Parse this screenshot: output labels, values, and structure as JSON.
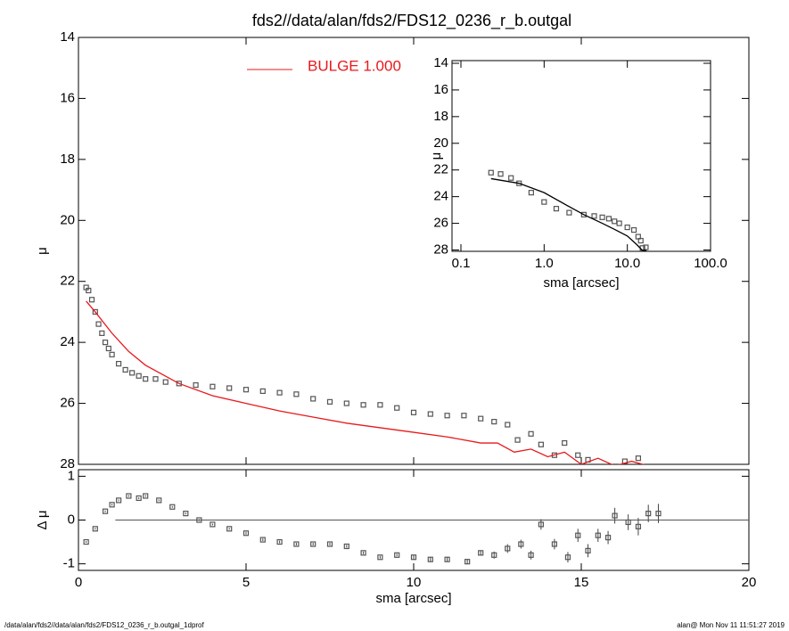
{
  "footer": {
    "left": "/data/alan/fds2//data/alan/fds2/FDS12_0236_r_b.outgal_1dprof",
    "right": "alan@  Mon Nov 11 11:51:27 2019"
  },
  "chart_data": [
    {
      "type": "scatter",
      "title": "fds2//data/alan/fds2/FDS12_0236_r_b.outgal",
      "y_label": "μ",
      "xlim": [
        0,
        20
      ],
      "xticks": [
        0,
        5,
        10,
        15,
        20
      ],
      "ylim": [
        28,
        14
      ],
      "yticks": [
        14,
        16,
        18,
        20,
        22,
        24,
        26,
        28
      ],
      "series": [
        {
          "marker": "square",
          "color": "#555555",
          "x": [
            0.23,
            0.3,
            0.4,
            0.5,
            0.6,
            0.7,
            0.8,
            0.9,
            1.0,
            1.2,
            1.4,
            1.6,
            1.8,
            2.0,
            2.3,
            2.6,
            3.0,
            3.5,
            4.0,
            4.5,
            5.0,
            5.5,
            6.0,
            6.5,
            7.0,
            7.5,
            8.0,
            8.5,
            9.0,
            9.5,
            10.0,
            10.5,
            11.0,
            11.5,
            12.0,
            12.4,
            12.8,
            13.1,
            13.5,
            13.8,
            14.2,
            14.5,
            14.9,
            15.2,
            16.3,
            16.7
          ],
          "values": [
            22.2,
            22.3,
            22.6,
            23.0,
            23.4,
            23.7,
            24.0,
            24.2,
            24.4,
            24.7,
            24.9,
            25.0,
            25.1,
            25.2,
            25.2,
            25.3,
            25.35,
            25.4,
            25.45,
            25.5,
            25.55,
            25.6,
            25.65,
            25.7,
            25.85,
            25.95,
            26.0,
            26.05,
            26.05,
            26.15,
            26.3,
            26.35,
            26.4,
            26.4,
            26.5,
            26.6,
            26.7,
            27.2,
            27.0,
            27.35,
            27.7,
            27.3,
            27.7,
            27.85,
            27.9,
            27.8
          ]
        },
        {
          "name": "BULGE  1.000",
          "style": "line",
          "color": "#e8191c",
          "x": [
            0.23,
            0.5,
            1,
            1.5,
            2,
            3,
            4,
            5,
            6,
            7,
            8,
            9,
            10,
            11,
            12,
            12.5,
            13,
            13.5,
            14,
            14.5,
            15,
            15.5,
            16,
            16.5,
            17
          ],
          "values": [
            22.65,
            23.0,
            23.7,
            24.3,
            24.75,
            25.35,
            25.75,
            26.0,
            26.25,
            26.45,
            26.65,
            26.8,
            26.95,
            27.1,
            27.3,
            27.3,
            27.6,
            27.5,
            27.75,
            27.6,
            28.0,
            27.8,
            28.05,
            27.9,
            28.05
          ]
        }
      ]
    },
    {
      "type": "errorbar",
      "y_label": "Δ μ",
      "x_label": "sma [arcsec]",
      "xlim": [
        0,
        20
      ],
      "xticks": [
        0,
        5,
        10,
        15,
        20
      ],
      "ylim": [
        -1.15,
        1.15
      ],
      "yticks": [
        1,
        0,
        -1
      ],
      "zero_line": true,
      "series": [
        {
          "marker": "square",
          "color": "#555555",
          "x": [
            0.23,
            0.5,
            0.8,
            1.0,
            1.2,
            1.5,
            1.8,
            2.0,
            2.4,
            2.8,
            3.2,
            3.6,
            4.0,
            4.5,
            5.0,
            5.5,
            6.0,
            6.5,
            7.0,
            7.5,
            8.0,
            8.5,
            9.0,
            9.5,
            10.0,
            10.5,
            11.0,
            11.6,
            12.0,
            12.4,
            12.8,
            13.2,
            13.5,
            13.8,
            14.2,
            14.6,
            14.9,
            15.2,
            15.5,
            15.8,
            16.0,
            16.4,
            16.7,
            17.0,
            17.3
          ],
          "values": [
            -0.5,
            -0.2,
            0.2,
            0.35,
            0.45,
            0.55,
            0.5,
            0.55,
            0.45,
            0.3,
            0.15,
            0.0,
            -0.1,
            -0.2,
            -0.3,
            -0.45,
            -0.5,
            -0.55,
            -0.55,
            -0.55,
            -0.6,
            -0.75,
            -0.85,
            -0.8,
            -0.85,
            -0.9,
            -0.9,
            -0.95,
            -0.75,
            -0.8,
            -0.65,
            -0.55,
            -0.8,
            -0.1,
            -0.55,
            -0.85,
            -0.35,
            -0.7,
            -0.35,
            -0.4,
            0.1,
            -0.05,
            -0.15,
            0.15,
            0.15
          ],
          "errors": [
            0.02,
            0.02,
            0.02,
            0.02,
            0.02,
            0.02,
            0.02,
            0.02,
            0.02,
            0.02,
            0.02,
            0.02,
            0.02,
            0.02,
            0.03,
            0.03,
            0.03,
            0.03,
            0.03,
            0.03,
            0.03,
            0.03,
            0.03,
            0.03,
            0.05,
            0.05,
            0.05,
            0.05,
            0.06,
            0.08,
            0.1,
            0.1,
            0.1,
            0.12,
            0.12,
            0.12,
            0.15,
            0.15,
            0.15,
            0.15,
            0.18,
            0.18,
            0.2,
            0.2,
            0.22
          ]
        }
      ]
    },
    {
      "type": "scatter",
      "y_label": "μ",
      "x_label": "sma [arcsec]",
      "xscale": "log",
      "xlim": [
        0.1,
        100
      ],
      "xticks": [
        0.1,
        {
          "value": 1,
          "label": "1.0"
        },
        {
          "value": 10,
          "label": "10.0"
        },
        {
          "value": 100,
          "label": "100.0"
        }
      ],
      "ylim": [
        28.1,
        13.8
      ],
      "yticks": [
        14,
        16,
        18,
        20,
        22,
        24,
        26,
        28
      ],
      "series": [
        {
          "marker": "square",
          "color": "#555555",
          "x": [
            0.23,
            0.3,
            0.4,
            0.5,
            0.7,
            1.0,
            1.4,
            2.0,
            3.0,
            4.0,
            5.0,
            6.0,
            7.0,
            8.0,
            10.0,
            12.0,
            13.5,
            14.5,
            15.2,
            16.7
          ],
          "values": [
            22.2,
            22.3,
            22.6,
            23.0,
            23.7,
            24.4,
            24.9,
            25.2,
            25.35,
            25.45,
            25.55,
            25.65,
            25.85,
            26.0,
            26.3,
            26.5,
            27.0,
            27.3,
            27.85,
            27.8
          ]
        },
        {
          "style": "line",
          "color": "#000000",
          "x": [
            0.23,
            0.5,
            1,
            2,
            3,
            5,
            7,
            10,
            13,
            15,
            17
          ],
          "values": [
            22.65,
            23.0,
            23.7,
            24.75,
            25.35,
            26.0,
            26.45,
            26.95,
            27.6,
            28.0,
            28.05
          ]
        }
      ]
    }
  ]
}
